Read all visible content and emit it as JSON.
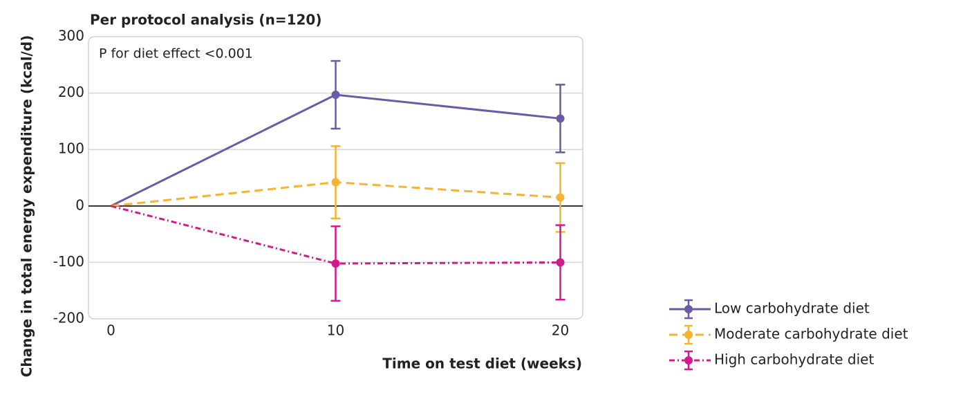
{
  "chart_data": {
    "type": "line",
    "title": "Per protocol analysis (n=120)",
    "annotation": "P for diet effect <0.001",
    "x_label": "Time on test diet (weeks)",
    "y_label": "Change in total energy expenditure (kcal/d)",
    "x": [
      0,
      10,
      20
    ],
    "xlim": [
      -1,
      21
    ],
    "xticks": [
      0,
      10,
      20
    ],
    "ylim": [
      -200,
      300
    ],
    "yticks": [
      -200,
      -100,
      0,
      100,
      200,
      300
    ],
    "grid": true,
    "legend": "lower right",
    "series": [
      {
        "name": "Low carbohydrate diet",
        "color": "#6a5aa8",
        "dash": "solid",
        "values": [
          0,
          197,
          155
        ],
        "errors": [
          null,
          60,
          60
        ]
      },
      {
        "name": "Moderate carbohydrate diet",
        "color": "#f5b335",
        "dash": "dashed",
        "values": [
          0,
          42,
          15
        ],
        "errors": [
          null,
          64,
          61
        ]
      },
      {
        "name": "High carbohydrate diet",
        "color": "#d4198c",
        "dash": "dashdot",
        "values": [
          0,
          -102,
          -100
        ],
        "errors": [
          null,
          66,
          66
        ]
      }
    ]
  }
}
